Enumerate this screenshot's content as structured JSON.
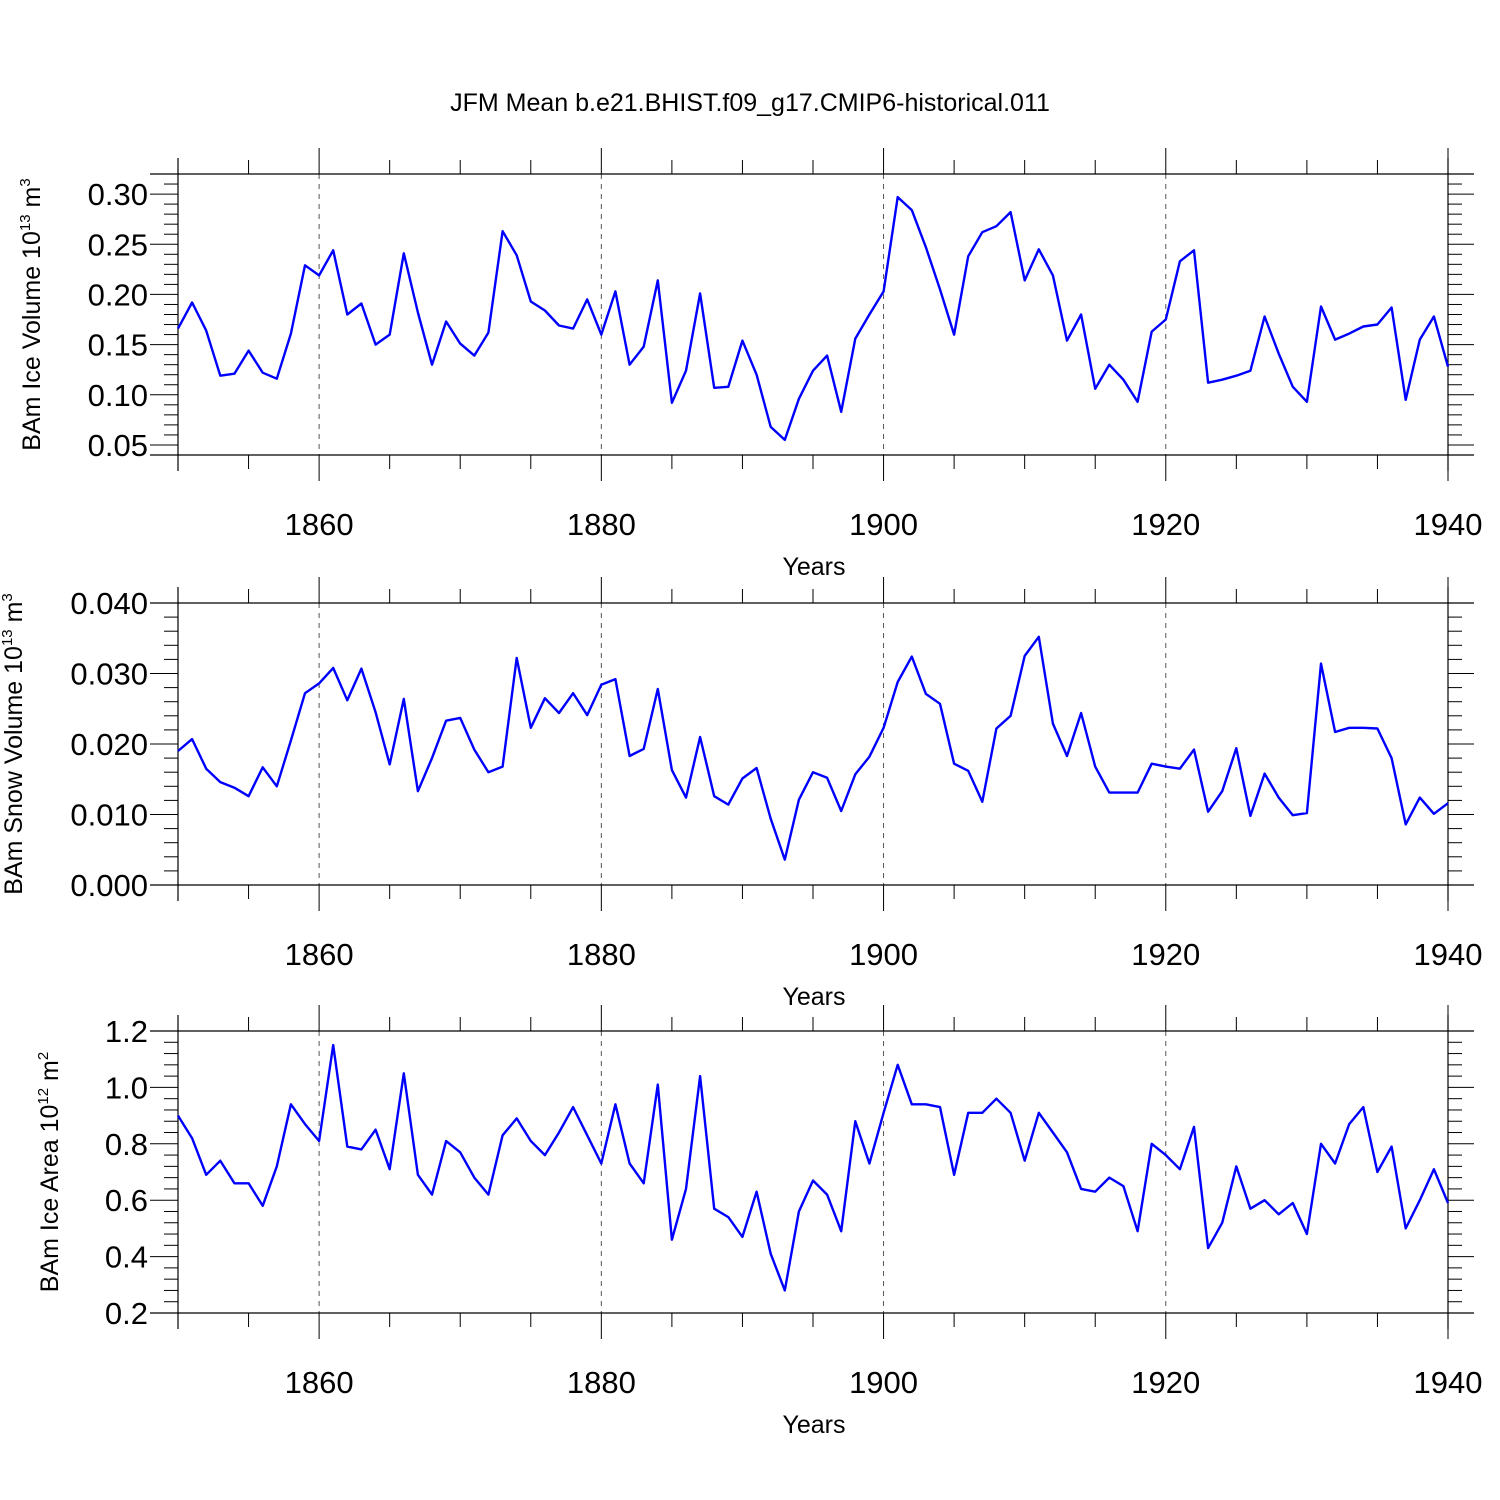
{
  "title": "JFM Mean b.e21.BHIST.f09_g17.CMIP6-historical.011",
  "colors": {
    "series": "#0000ff",
    "axis": "#000000",
    "grid": "#555555"
  },
  "chart_data": [
    {
      "type": "line",
      "xlabel": "Years",
      "ylabel": {
        "text": "BAm Ice Volume 10",
        "exp": "13",
        "unit": " m",
        "unit_exp": "3"
      },
      "xlim": [
        1850,
        1940
      ],
      "ylim": [
        0.04,
        0.32
      ],
      "xticks": [
        1860,
        1880,
        1900,
        1920,
        1940
      ],
      "xtick_labels": [
        "1860",
        "1880",
        "1900",
        "1920",
        "1940"
      ],
      "yticks": [
        0.05,
        0.1,
        0.15,
        0.2,
        0.25,
        0.3
      ],
      "ytick_labels": [
        "0.05",
        "0.10",
        "0.15",
        "0.20",
        "0.25",
        "0.30"
      ],
      "grid": "x-dashed",
      "series": [
        {
          "x": [
            1850,
            1851,
            1852,
            1853,
            1854,
            1855,
            1856,
            1857,
            1858,
            1859,
            1860,
            1861,
            1862,
            1863,
            1864,
            1865,
            1866,
            1867,
            1868,
            1869,
            1870,
            1871,
            1872,
            1873,
            1874,
            1875,
            1876,
            1877,
            1878,
            1879,
            1880,
            1881,
            1882,
            1883,
            1884,
            1885,
            1886,
            1887,
            1888,
            1889,
            1890,
            1891,
            1892,
            1893,
            1894,
            1895,
            1896,
            1897,
            1898,
            1899,
            1900,
            1901,
            1902,
            1903,
            1904,
            1905,
            1906,
            1907,
            1908,
            1909,
            1910,
            1911,
            1912,
            1913,
            1914,
            1915,
            1916,
            1917,
            1918,
            1919,
            1920,
            1921,
            1922,
            1923,
            1924,
            1925,
            1926,
            1927,
            1928,
            1929,
            1930,
            1931,
            1932,
            1933,
            1934,
            1935,
            1936,
            1937,
            1938,
            1939,
            1940
          ],
          "y": [
            0.166,
            0.192,
            0.164,
            0.119,
            0.121,
            0.144,
            0.122,
            0.116,
            0.161,
            0.229,
            0.219,
            0.244,
            0.18,
            0.191,
            0.15,
            0.16,
            0.241,
            0.182,
            0.13,
            0.173,
            0.151,
            0.139,
            0.162,
            0.263,
            0.239,
            0.193,
            0.184,
            0.169,
            0.166,
            0.195,
            0.16,
            0.203,
            0.13,
            0.148,
            0.214,
            0.092,
            0.124,
            0.201,
            0.107,
            0.108,
            0.154,
            0.12,
            0.068,
            0.055,
            0.096,
            0.124,
            0.139,
            0.083,
            0.156,
            0.18,
            0.203,
            0.297,
            0.284,
            0.247,
            0.205,
            0.16,
            0.238,
            0.262,
            0.268,
            0.282,
            0.214,
            0.245,
            0.219,
            0.154,
            0.18,
            0.106,
            0.13,
            0.115,
            0.093,
            0.163,
            0.175,
            0.233,
            0.244,
            0.112,
            0.115,
            0.119,
            0.124,
            0.178,
            0.141,
            0.108,
            0.093,
            0.188,
            0.155,
            0.161,
            0.168,
            0.17,
            0.187,
            0.095,
            0.155,
            0.178,
            0.128
          ]
        }
      ]
    },
    {
      "type": "line",
      "xlabel": "Years",
      "ylabel": {
        "text": "BAm Snow Volume 10",
        "exp": "13",
        "unit": " m",
        "unit_exp": "3"
      },
      "xlim": [
        1850,
        1940
      ],
      "ylim": [
        0.0,
        0.04
      ],
      "xticks": [
        1860,
        1880,
        1900,
        1920,
        1940
      ],
      "xtick_labels": [
        "1860",
        "1880",
        "1900",
        "1920",
        "1940"
      ],
      "yticks": [
        0.0,
        0.01,
        0.02,
        0.03,
        0.04
      ],
      "ytick_labels": [
        "0.000",
        "0.010",
        "0.020",
        "0.030",
        "0.040"
      ],
      "grid": "x-dashed",
      "series": [
        {
          "x": [
            1850,
            1851,
            1852,
            1853,
            1854,
            1855,
            1856,
            1857,
            1858,
            1859,
            1860,
            1861,
            1862,
            1863,
            1864,
            1865,
            1866,
            1867,
            1868,
            1869,
            1870,
            1871,
            1872,
            1873,
            1874,
            1875,
            1876,
            1877,
            1878,
            1879,
            1880,
            1881,
            1882,
            1883,
            1884,
            1885,
            1886,
            1887,
            1888,
            1889,
            1890,
            1891,
            1892,
            1893,
            1894,
            1895,
            1896,
            1897,
            1898,
            1899,
            1900,
            1901,
            1902,
            1903,
            1904,
            1905,
            1906,
            1907,
            1908,
            1909,
            1910,
            1911,
            1912,
            1913,
            1914,
            1915,
            1916,
            1917,
            1918,
            1919,
            1920,
            1921,
            1922,
            1923,
            1924,
            1925,
            1926,
            1927,
            1928,
            1929,
            1930,
            1931,
            1932,
            1933,
            1934,
            1935,
            1936,
            1937,
            1938,
            1939,
            1940
          ],
          "y": [
            0.019,
            0.0207,
            0.0165,
            0.0146,
            0.0138,
            0.0126,
            0.0167,
            0.014,
            0.0205,
            0.0272,
            0.0286,
            0.0308,
            0.0262,
            0.0307,
            0.0245,
            0.0171,
            0.0264,
            0.0133,
            0.018,
            0.0233,
            0.0237,
            0.0192,
            0.016,
            0.0168,
            0.0322,
            0.0223,
            0.0265,
            0.0244,
            0.0272,
            0.0241,
            0.0284,
            0.0292,
            0.0183,
            0.0193,
            0.0278,
            0.0163,
            0.0124,
            0.021,
            0.0126,
            0.0114,
            0.0151,
            0.0166,
            0.0094,
            0.0036,
            0.0121,
            0.016,
            0.0152,
            0.0105,
            0.0157,
            0.0182,
            0.0223,
            0.0288,
            0.0324,
            0.0271,
            0.0257,
            0.0172,
            0.0162,
            0.0118,
            0.0222,
            0.024,
            0.0325,
            0.0352,
            0.0229,
            0.0183,
            0.0244,
            0.0168,
            0.0131,
            0.0131,
            0.0131,
            0.0172,
            0.0168,
            0.0165,
            0.0192,
            0.0104,
            0.0133,
            0.0194,
            0.0098,
            0.0158,
            0.0124,
            0.0099,
            0.0102,
            0.0314,
            0.0217,
            0.0223,
            0.0223,
            0.0222,
            0.018,
            0.0086,
            0.0124,
            0.0101,
            0.0116
          ]
        }
      ]
    },
    {
      "type": "line",
      "xlabel": "Years",
      "ylabel": {
        "text": "BAm Ice Area 10",
        "exp": "12",
        "unit": " m",
        "unit_exp": "2"
      },
      "xlim": [
        1850,
        1940
      ],
      "ylim": [
        0.2,
        1.2
      ],
      "xticks": [
        1860,
        1880,
        1900,
        1920,
        1940
      ],
      "xtick_labels": [
        "1860",
        "1880",
        "1900",
        "1920",
        "1940"
      ],
      "yticks": [
        0.2,
        0.4,
        0.6,
        0.8,
        1.0,
        1.2
      ],
      "ytick_labels": [
        "0.2",
        "0.4",
        "0.6",
        "0.8",
        "1.0",
        "1.2"
      ],
      "grid": "x-dashed",
      "series": [
        {
          "x": [
            1850,
            1851,
            1852,
            1853,
            1854,
            1855,
            1856,
            1857,
            1858,
            1859,
            1860,
            1861,
            1862,
            1863,
            1864,
            1865,
            1866,
            1867,
            1868,
            1869,
            1870,
            1871,
            1872,
            1873,
            1874,
            1875,
            1876,
            1877,
            1878,
            1879,
            1880,
            1881,
            1882,
            1883,
            1884,
            1885,
            1886,
            1887,
            1888,
            1889,
            1890,
            1891,
            1892,
            1893,
            1894,
            1895,
            1896,
            1897,
            1898,
            1899,
            1900,
            1901,
            1902,
            1903,
            1904,
            1905,
            1906,
            1907,
            1908,
            1909,
            1910,
            1911,
            1912,
            1913,
            1914,
            1915,
            1916,
            1917,
            1918,
            1919,
            1920,
            1921,
            1922,
            1923,
            1924,
            1925,
            1926,
            1927,
            1928,
            1929,
            1930,
            1931,
            1932,
            1933,
            1934,
            1935,
            1936,
            1937,
            1938,
            1939,
            1940
          ],
          "y": [
            0.9,
            0.82,
            0.69,
            0.74,
            0.66,
            0.66,
            0.58,
            0.72,
            0.94,
            0.87,
            0.81,
            1.15,
            0.79,
            0.78,
            0.85,
            0.71,
            1.05,
            0.69,
            0.62,
            0.81,
            0.77,
            0.68,
            0.62,
            0.83,
            0.89,
            0.81,
            0.76,
            0.84,
            0.93,
            0.83,
            0.73,
            0.94,
            0.73,
            0.66,
            1.01,
            0.46,
            0.64,
            1.04,
            0.57,
            0.54,
            0.47,
            0.63,
            0.41,
            0.28,
            0.56,
            0.67,
            0.62,
            0.49,
            0.88,
            0.73,
            0.91,
            1.08,
            0.94,
            0.94,
            0.93,
            0.69,
            0.91,
            0.91,
            0.96,
            0.91,
            0.74,
            0.91,
            0.84,
            0.77,
            0.64,
            0.63,
            0.68,
            0.65,
            0.49,
            0.8,
            0.76,
            0.71,
            0.86,
            0.43,
            0.52,
            0.72,
            0.57,
            0.6,
            0.55,
            0.59,
            0.48,
            0.8,
            0.73,
            0.87,
            0.93,
            0.7,
            0.79,
            0.5,
            0.6,
            0.71,
            0.59
          ]
        }
      ]
    }
  ]
}
